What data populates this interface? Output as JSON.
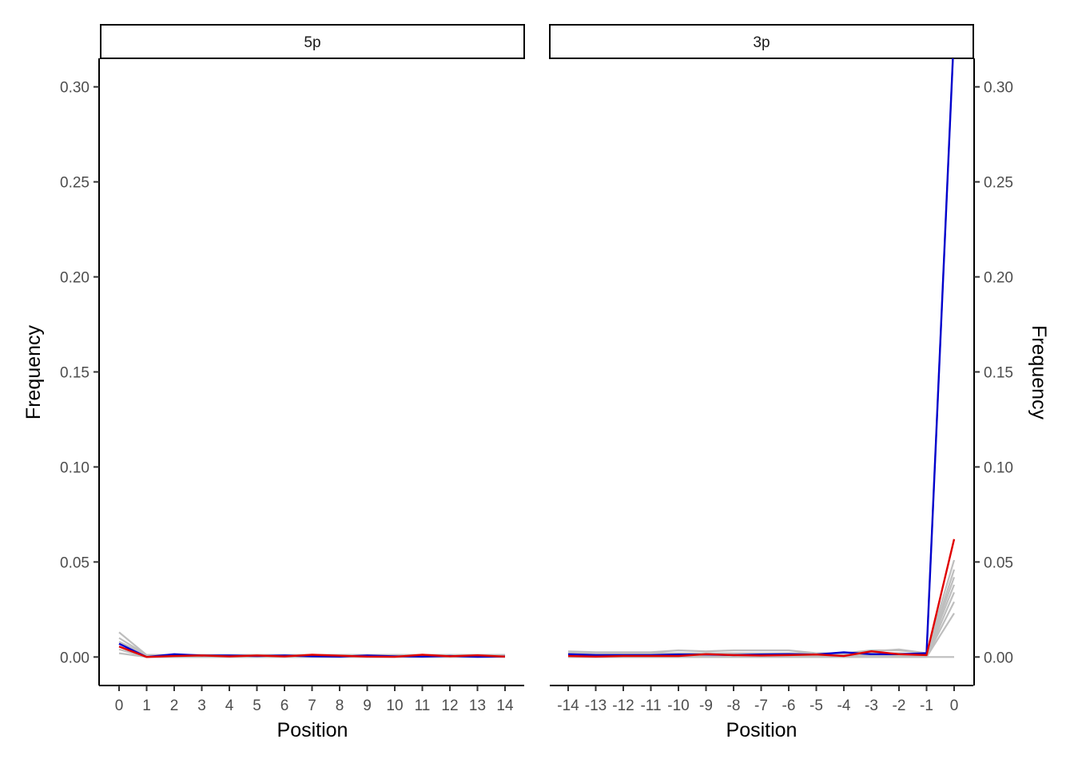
{
  "chart_data": {
    "type": "line",
    "ylabel": "Frequency",
    "ylim": [
      -0.015,
      0.315
    ],
    "yticks": [
      "0.00",
      "0.05",
      "0.10",
      "0.15",
      "0.20",
      "0.25",
      "0.30"
    ],
    "colors": {
      "background_series": "#bebebe",
      "blue_series": "#0000cd",
      "red_series": "#e00000",
      "axis": "#000000"
    },
    "panels": [
      {
        "strip": "5p",
        "xlabel": "Position",
        "x": [
          0,
          1,
          2,
          3,
          4,
          5,
          6,
          7,
          8,
          9,
          10,
          11,
          12,
          13,
          14
        ],
        "xticks": [
          "0",
          "1",
          "2",
          "3",
          "4",
          "5",
          "6",
          "7",
          "8",
          "9",
          "10",
          "11",
          "12",
          "13",
          "14"
        ],
        "y_axis_side": "left",
        "series": [
          {
            "style": "grey",
            "values": [
              0.013,
              0.001,
              0.001,
              0.001,
              0.001,
              0.001,
              0.001,
              0.001,
              0.001,
              0.001,
              0.001,
              0.001,
              0.001,
              0.001,
              0.001
            ]
          },
          {
            "style": "grey",
            "values": [
              0.01,
              0.001,
              0.001,
              0.001,
              0.001,
              0.001,
              0.001,
              0.001,
              0.001,
              0.001,
              0.001,
              0.001,
              0.001,
              0.001,
              0.001
            ]
          },
          {
            "style": "grey",
            "values": [
              0.008,
              0.001,
              0.001,
              0.001,
              0.001,
              0.001,
              0.001,
              0.001,
              0.001,
              0.001,
              0.001,
              0.001,
              0.001,
              0.001,
              0.001
            ]
          },
          {
            "style": "grey",
            "values": [
              0.004,
              0.0,
              0.0,
              0.0,
              0.0,
              0.0,
              0.0,
              0.0,
              0.0,
              0.0,
              0.0,
              0.0,
              0.0,
              0.0,
              0.0
            ]
          },
          {
            "style": "grey",
            "values": [
              0.002,
              0.0,
              0.0,
              0.0,
              0.0,
              0.0,
              0.0,
              0.0,
              0.0,
              0.0,
              0.0,
              0.0,
              0.0,
              0.0,
              0.0
            ]
          },
          {
            "style": "blue",
            "values": [
              0.007,
              0.0,
              0.0015,
              0.0008,
              0.0008,
              0.0005,
              0.0008,
              0.0004,
              0.0002,
              0.0008,
              0.0004,
              0.0002,
              0.0005,
              0.0001,
              0.0003
            ]
          },
          {
            "style": "red",
            "values": [
              0.0055,
              0.0,
              0.0005,
              0.0008,
              0.0003,
              0.0008,
              0.0003,
              0.0012,
              0.0007,
              0.0002,
              0.0001,
              0.0012,
              0.0004,
              0.0009,
              0.0002
            ]
          }
        ]
      },
      {
        "strip": "3p",
        "xlabel": "Position",
        "x": [
          -14,
          -13,
          -12,
          -11,
          -10,
          -9,
          -8,
          -7,
          -6,
          -5,
          -4,
          -3,
          -2,
          -1,
          0
        ],
        "xticks": [
          "-14",
          "-13",
          "-12",
          "-11",
          "-10",
          "-9",
          "-8",
          "-7",
          "-6",
          "-5",
          "-4",
          "-3",
          "-2",
          "-1",
          "0"
        ],
        "y_axis_side": "right",
        "series": [
          {
            "style": "grey",
            "values": [
              0.003,
              0.0025,
              0.0025,
              0.0025,
              0.0035,
              0.003,
              0.0035,
              0.0035,
              0.0035,
              0.002,
              0.002,
              0.003,
              0.004,
              0.002,
              0.33
            ]
          },
          {
            "style": "grey",
            "values": [
              0.002,
              0.002,
              0.002,
              0.002,
              0.002,
              0.002,
              0.002,
              0.002,
              0.002,
              0.002,
              0.002,
              0.0035,
              0.0035,
              0.002,
              0.051
            ]
          },
          {
            "style": "grey",
            "values": [
              0.001,
              0.001,
              0.001,
              0.001,
              0.001,
              0.001,
              0.001,
              0.001,
              0.001,
              0.001,
              0.001,
              0.002,
              0.002,
              0.001,
              0.046
            ]
          },
          {
            "style": "grey",
            "values": [
              0.001,
              0.001,
              0.001,
              0.001,
              0.001,
              0.001,
              0.001,
              0.001,
              0.001,
              0.001,
              0.001,
              0.001,
              0.001,
              0.001,
              0.042
            ]
          },
          {
            "style": "grey",
            "values": [
              0.001,
              0.001,
              0.001,
              0.001,
              0.001,
              0.001,
              0.001,
              0.001,
              0.001,
              0.001,
              0.001,
              0.001,
              0.001,
              0.001,
              0.038
            ]
          },
          {
            "style": "grey",
            "values": [
              0.0,
              0.0,
              0.0,
              0.0,
              0.0,
              0.0,
              0.0,
              0.0,
              0.0,
              0.0,
              0.0,
              0.0,
              0.0,
              0.0,
              0.034
            ]
          },
          {
            "style": "grey",
            "values": [
              0.0,
              0.0,
              0.0,
              0.0,
              0.0,
              0.0,
              0.0,
              0.0,
              0.0,
              0.0,
              0.0,
              0.0,
              0.0,
              0.0,
              0.029
            ]
          },
          {
            "style": "grey",
            "values": [
              0.0,
              0.0,
              0.0,
              0.0,
              0.0,
              0.0,
              0.0,
              0.0,
              0.0,
              0.0,
              0.0,
              0.0,
              0.0,
              0.0,
              0.023
            ]
          },
          {
            "style": "grey",
            "values": [
              0.0,
              0.0,
              0.0,
              0.0,
              0.0,
              0.0,
              0.0,
              0.0,
              0.0,
              0.0,
              0.0,
              0.0,
              0.0,
              0.0,
              0.0
            ]
          },
          {
            "style": "blue",
            "values": [
              0.0015,
              0.001,
              0.001,
              0.001,
              0.0013,
              0.0013,
              0.001,
              0.0013,
              0.0015,
              0.0013,
              0.0025,
              0.0015,
              0.0015,
              0.002,
              0.33
            ]
          },
          {
            "style": "red",
            "values": [
              0.0005,
              0.0002,
              0.0005,
              0.0005,
              0.0005,
              0.0015,
              0.001,
              0.0008,
              0.001,
              0.0013,
              0.0005,
              0.003,
              0.0015,
              0.001,
              0.062
            ]
          }
        ]
      }
    ]
  }
}
